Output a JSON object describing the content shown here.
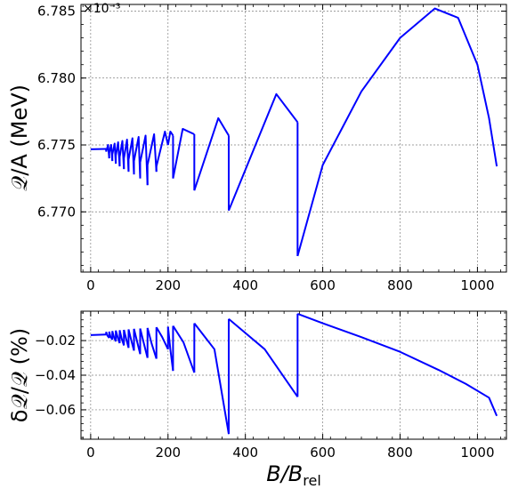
{
  "chart_data": [
    {
      "type": "line",
      "panel": "top",
      "ylabel": "𝒬/A (MeV)",
      "xlabel": "",
      "y_offset_text": "×10⁻³",
      "xlim": [
        -25,
        1075
      ],
      "ylim": [
        6.7655,
        6.7855
      ],
      "xticks": [
        0,
        200,
        400,
        600,
        800,
        1000
      ],
      "xtick_labels": [
        "0",
        "200",
        "400",
        "600",
        "800",
        "1000"
      ],
      "yticks": [
        6.77,
        6.775,
        6.78,
        6.785
      ],
      "ytick_labels": [
        "6.770",
        "6.775",
        "6.780",
        "6.785"
      ],
      "grid": true,
      "color": "#0000ff",
      "segments": [
        {
          "x": [
            0,
            40
          ],
          "y": [
            6.77468,
            6.7747
          ]
        },
        {
          "x": [
            40,
            45,
            48
          ],
          "y": [
            6.7745,
            6.775,
            6.774
          ]
        },
        {
          "x": [
            48,
            53,
            56
          ],
          "y": [
            6.7744,
            6.775,
            6.7738
          ]
        },
        {
          "x": [
            56,
            62,
            65
          ],
          "y": [
            6.7743,
            6.7751,
            6.7736
          ]
        },
        {
          "x": [
            65,
            71,
            75
          ],
          "y": [
            6.7742,
            6.7752,
            6.7734
          ]
        },
        {
          "x": [
            75,
            82,
            86
          ],
          "y": [
            6.7741,
            6.7753,
            6.7732
          ]
        },
        {
          "x": [
            86,
            94,
            98
          ],
          "y": [
            6.774,
            6.7754,
            6.773
          ]
        },
        {
          "x": [
            98,
            108,
            112
          ],
          "y": [
            6.7739,
            6.7755,
            6.7728
          ]
        },
        {
          "x": [
            112,
            124,
            128
          ],
          "y": [
            6.7738,
            6.7756,
            6.7725
          ]
        },
        {
          "x": [
            128,
            142,
            147
          ],
          "y": [
            6.7737,
            6.7757,
            6.772
          ]
        },
        {
          "x": [
            147,
            164,
            170
          ],
          "y": [
            6.7735,
            6.7758,
            6.773
          ]
        },
        {
          "x": [
            170,
            192,
            200
          ],
          "y": [
            6.7734,
            6.776,
            6.775
          ]
        },
        {
          "x": [
            200,
            206,
            213
          ],
          "y": [
            6.775,
            6.776,
            6.7757
          ]
        },
        {
          "x": [
            213,
            238,
            268
          ],
          "y": [
            6.7725,
            6.7762,
            6.7758
          ]
        },
        {
          "x": [
            268,
            330,
            357
          ],
          "y": [
            6.7716,
            6.777,
            6.7757
          ]
        },
        {
          "x": [
            357,
            480,
            535
          ],
          "y": [
            6.7701,
            6.7788,
            6.7767
          ]
        },
        {
          "x": [
            535,
            600,
            700,
            800,
            890,
            950,
            1000,
            1030,
            1050
          ],
          "y": [
            6.7667,
            6.7735,
            6.779,
            6.783,
            6.7852,
            6.7845,
            6.781,
            6.777,
            6.7734
          ]
        }
      ]
    },
    {
      "type": "line",
      "panel": "bottom",
      "ylabel": "δ𝒬/𝒬 (%)",
      "xlabel": "B/B",
      "xlabel_sub": "rel",
      "xlim": [
        -25,
        1075
      ],
      "ylim": [
        -0.077,
        -0.003
      ],
      "xticks": [
        0,
        200,
        400,
        600,
        800,
        1000
      ],
      "xtick_labels": [
        "0",
        "200",
        "400",
        "600",
        "800",
        "1000"
      ],
      "yticks": [
        -0.06,
        -0.04,
        -0.02
      ],
      "ytick_labels": [
        "−0.06",
        "−0.04",
        "−0.02"
      ],
      "grid": true,
      "color": "#0000ff",
      "segments": [
        {
          "x": [
            0,
            40
          ],
          "y": [
            -0.0168,
            -0.0165
          ]
        },
        {
          "x": [
            40,
            43,
            48
          ],
          "y": [
            -0.015,
            -0.017,
            -0.0185
          ]
        },
        {
          "x": [
            48,
            51,
            56
          ],
          "y": [
            -0.0148,
            -0.0175,
            -0.0195
          ]
        },
        {
          "x": [
            56,
            60,
            65
          ],
          "y": [
            -0.0145,
            -0.0178,
            -0.0205
          ]
        },
        {
          "x": [
            65,
            70,
            75
          ],
          "y": [
            -0.0142,
            -0.0182,
            -0.0215
          ]
        },
        {
          "x": [
            75,
            80,
            86
          ],
          "y": [
            -0.014,
            -0.0187,
            -0.0228
          ]
        },
        {
          "x": [
            86,
            92,
            98
          ],
          "y": [
            -0.0138,
            -0.0192,
            -0.0242
          ]
        },
        {
          "x": [
            98,
            105,
            112
          ],
          "y": [
            -0.0135,
            -0.0198,
            -0.0258
          ]
        },
        {
          "x": [
            112,
            120,
            128
          ],
          "y": [
            -0.0132,
            -0.0205,
            -0.0278
          ]
        },
        {
          "x": [
            128,
            137,
            147
          ],
          "y": [
            -0.013,
            -0.0212,
            -0.03
          ]
        },
        {
          "x": [
            147,
            158,
            170
          ],
          "y": [
            -0.0127,
            -0.022,
            -0.0305
          ]
        },
        {
          "x": [
            170,
            185,
            200
          ],
          "y": [
            -0.0123,
            -0.018,
            -0.025
          ]
        },
        {
          "x": [
            200,
            206,
            213
          ],
          "y": [
            -0.012,
            -0.025,
            -0.0375
          ]
        },
        {
          "x": [
            213,
            240,
            268
          ],
          "y": [
            -0.0115,
            -0.021,
            -0.0385
          ]
        },
        {
          "x": [
            268,
            320,
            357
          ],
          "y": [
            -0.01,
            -0.025,
            -0.074
          ]
        },
        {
          "x": [
            357,
            450,
            535
          ],
          "y": [
            -0.0075,
            -0.025,
            -0.0525
          ]
        },
        {
          "x": [
            535,
            600,
            700,
            800,
            900,
            970,
            1030,
            1050
          ],
          "y": [
            -0.0045,
            -0.01,
            -0.018,
            -0.0265,
            -0.037,
            -0.045,
            -0.053,
            -0.0635
          ]
        }
      ]
    }
  ]
}
